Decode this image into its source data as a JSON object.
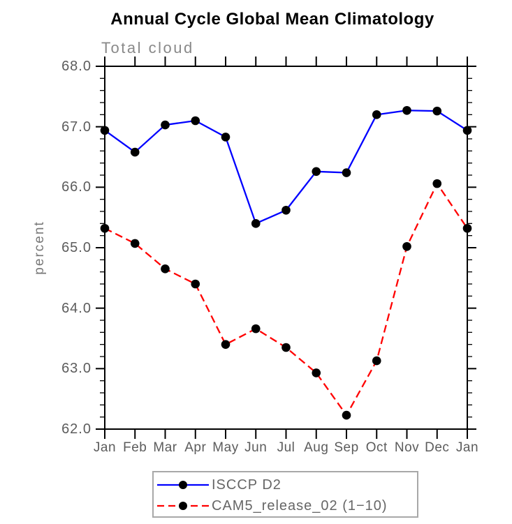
{
  "title": "Annual Cycle Global Mean Climatology",
  "subtitle": "Total cloud",
  "chart_data": {
    "type": "line",
    "x_categories": [
      "Jan",
      "Feb",
      "Mar",
      "Apr",
      "May",
      "Jun",
      "Jul",
      "Aug",
      "Sep",
      "Oct",
      "Nov",
      "Dec",
      "Jan"
    ],
    "ylabel": "percent",
    "ylim": [
      62.0,
      68.0
    ],
    "ytick_step": 1.0,
    "yminor_step": 0.2,
    "yticks": [
      {
        "label": "62.0",
        "value": 62.0
      },
      {
        "label": "63.0",
        "value": 63.0
      },
      {
        "label": "64.0",
        "value": 64.0
      },
      {
        "label": "65.0",
        "value": 65.0
      },
      {
        "label": "66.0",
        "value": 66.0
      },
      {
        "label": "67.0",
        "value": 67.0
      },
      {
        "label": "68.0",
        "value": 68.0
      }
    ],
    "grid": false,
    "legend_position": "bottom-center",
    "series": [
      {
        "name": "ISCCP D2",
        "color": "#0000ff",
        "line_style": "solid",
        "marker": "filled-circle",
        "marker_color": "#000000",
        "values": [
          66.94,
          66.58,
          67.03,
          67.1,
          66.83,
          65.4,
          65.62,
          66.26,
          66.24,
          67.2,
          67.27,
          67.26,
          66.94
        ]
      },
      {
        "name": "CAM5_release_02 (1−10)",
        "color": "#ff0000",
        "line_style": "dashed",
        "marker": "filled-circle",
        "marker_color": "#000000",
        "values": [
          65.32,
          65.07,
          64.65,
          64.4,
          63.4,
          63.66,
          63.35,
          62.93,
          62.23,
          63.13,
          65.02,
          66.06,
          65.32
        ]
      }
    ]
  },
  "colors": {
    "frame": "#000000",
    "tick": "#000000",
    "title_text": "#000000",
    "subtitle_text": "#898989",
    "axis_label_text": "#5c5c5c",
    "y_axis_title_text": "#777777",
    "legend_text": "#666666",
    "legend_border": "#a8a8a8",
    "background": "#ffffff"
  }
}
